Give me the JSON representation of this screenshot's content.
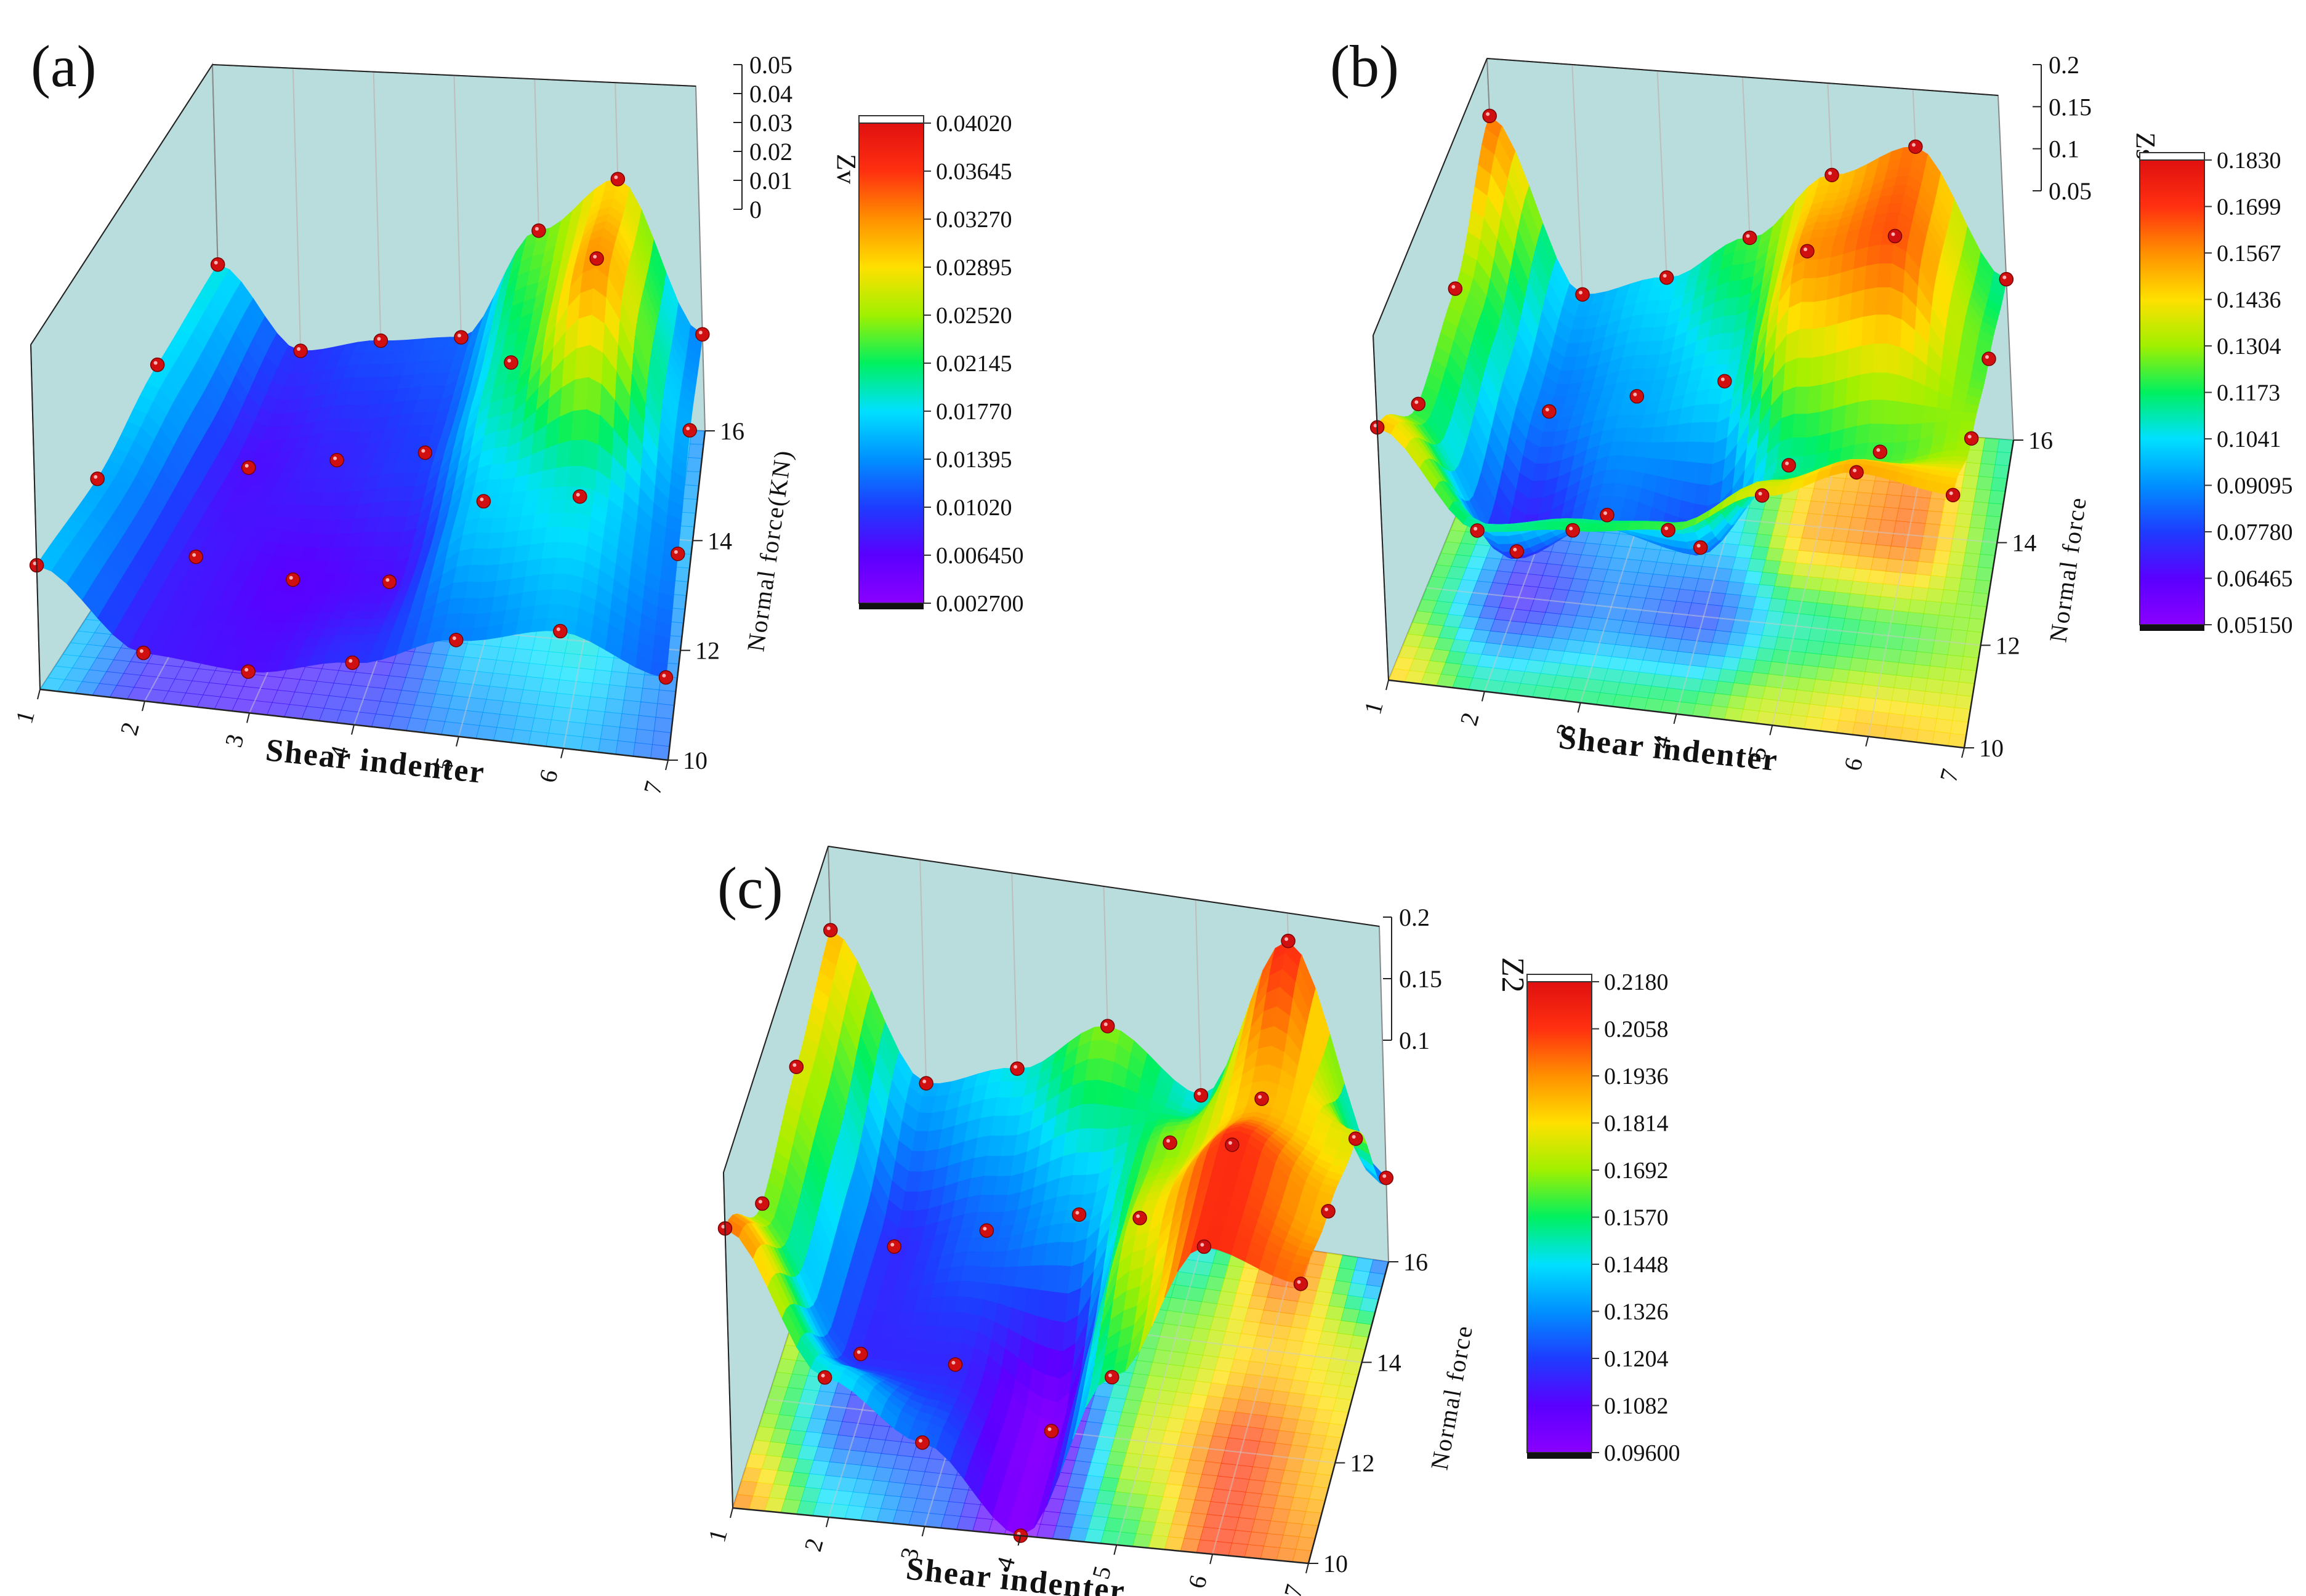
{
  "colors": {
    "ramp": [
      "#8a00ff",
      "#5a00ff",
      "#1e3cff",
      "#0090ff",
      "#00e0ff",
      "#00f060",
      "#a0f000",
      "#ffe000",
      "#ff9000",
      "#ff3010",
      "#e01010"
    ],
    "floor_ramp": [
      "#7a4ac8",
      "#5e6ad4",
      "#4a98d8",
      "#62c8c8",
      "#9ad070",
      "#d8c850",
      "#d89040",
      "#c86a30"
    ],
    "wall": "#b9dcdc",
    "grid": "#bdbdbd",
    "dot": "#d01010"
  },
  "chart_data": [
    {
      "type": "surface3d",
      "panel_label": "(a)",
      "xlabel": "Shear indenter",
      "ylabel": "Normal force(KN)",
      "zlabel": "Zv",
      "x_ticks": [
        "1",
        "2",
        "3",
        "4",
        "5",
        "6",
        "7"
      ],
      "y_ticks": [
        "10",
        "12",
        "14",
        "16"
      ],
      "z_ticks": [
        "0",
        "0.01",
        "0.02",
        "0.03",
        "0.04",
        "0.05"
      ],
      "colorbar_ticks": [
        "0.04020",
        "0.03645",
        "0.03270",
        "0.02895",
        "0.02520",
        "0.02145",
        "0.01770",
        "0.01395",
        "0.01020",
        "0.006450",
        "0.002700"
      ],
      "zlim": [
        0,
        0.05
      ],
      "points": [
        [
          1,
          10,
          0.018
        ],
        [
          2,
          10,
          0.007
        ],
        [
          3,
          10,
          0.006
        ],
        [
          4,
          10,
          0.009
        ],
        [
          5,
          10,
          0.014
        ],
        [
          6,
          10,
          0.017
        ],
        [
          7,
          10,
          0.012
        ],
        [
          1,
          12,
          0.017
        ],
        [
          2,
          12,
          0.007
        ],
        [
          3,
          12,
          0.005
        ],
        [
          4,
          12,
          0.006
        ],
        [
          5,
          12,
          0.019
        ],
        [
          6,
          12,
          0.021
        ],
        [
          7,
          12,
          0.014
        ],
        [
          1,
          14,
          0.02
        ],
        [
          2,
          14,
          0.006
        ],
        [
          3,
          14,
          0.008
        ],
        [
          4,
          14,
          0.01
        ],
        [
          5,
          14,
          0.024
        ],
        [
          6,
          14,
          0.04
        ],
        [
          7,
          14,
          0.016
        ],
        [
          1,
          16,
          0.021
        ],
        [
          2,
          16,
          0.009
        ],
        [
          3,
          16,
          0.011
        ],
        [
          4,
          16,
          0.012
        ],
        [
          5,
          16,
          0.028
        ],
        [
          6,
          16,
          0.036
        ],
        [
          7,
          16,
          0.014
        ]
      ]
    },
    {
      "type": "surface3d",
      "panel_label": "(b)",
      "xlabel": "Shear indenter",
      "ylabel": "Normal force",
      "zlabel": "Zs",
      "x_ticks": [
        "1",
        "2",
        "3",
        "4",
        "5",
        "6",
        "7"
      ],
      "y_ticks": [
        "10",
        "12",
        "14",
        "16"
      ],
      "z_ticks": [
        "0.05",
        "0.1",
        "0.15",
        "0.2"
      ],
      "colorbar_ticks": [
        "0.1830",
        "0.1699",
        "0.1567",
        "0.1436",
        "0.1304",
        "0.1173",
        "0.1041",
        "0.09095",
        "0.07780",
        "0.06465",
        "0.05150"
      ],
      "zlim": [
        0.05,
        0.2
      ],
      "points": [
        [
          1,
          10,
          0.16
        ],
        [
          2,
          10,
          0.12
        ],
        [
          3,
          10,
          0.125
        ],
        [
          4,
          10,
          0.13
        ],
        [
          5,
          10,
          0.15
        ],
        [
          6,
          10,
          0.165
        ],
        [
          7,
          10,
          0.16
        ],
        [
          1,
          12,
          0.13
        ],
        [
          2,
          12,
          0.07
        ],
        [
          3,
          12,
          0.09
        ],
        [
          4,
          12,
          0.08
        ],
        [
          5,
          12,
          0.12
        ],
        [
          6,
          12,
          0.13
        ],
        [
          7,
          12,
          0.14
        ],
        [
          1,
          14,
          0.14
        ],
        [
          2,
          14,
          0.09
        ],
        [
          3,
          14,
          0.1
        ],
        [
          4,
          14,
          0.11
        ],
        [
          5,
          14,
          0.17
        ],
        [
          6,
          14,
          0.18
        ],
        [
          7,
          14,
          0.13
        ],
        [
          1,
          16,
          0.175
        ],
        [
          2,
          16,
          0.1
        ],
        [
          3,
          16,
          0.11
        ],
        [
          4,
          16,
          0.13
        ],
        [
          5,
          16,
          0.16
        ],
        [
          6,
          16,
          0.175
        ],
        [
          7,
          16,
          0.12
        ]
      ]
    },
    {
      "type": "surface3d",
      "panel_label": "(c)",
      "xlabel": "Shear indenter",
      "ylabel": "Normal force",
      "zlabel": "Z2",
      "x_ticks": [
        "1",
        "2",
        "3",
        "4",
        "5",
        "6",
        "7"
      ],
      "y_ticks": [
        "10",
        "12",
        "14",
        "16"
      ],
      "z_ticks": [
        "0.1",
        "0.15",
        "0.2"
      ],
      "colorbar_ticks": [
        "0.2180",
        "0.2058",
        "0.1936",
        "0.1814",
        "0.1692",
        "0.1570",
        "0.1448",
        "0.1326",
        "0.1204",
        "0.1082",
        "0.09600"
      ],
      "zlim": [
        0.1,
        0.22
      ],
      "points": [
        [
          1,
          10,
          0.2
        ],
        [
          2,
          10,
          0.15
        ],
        [
          3,
          10,
          0.13
        ],
        [
          4,
          10,
          0.1
        ],
        [
          5,
          10,
          0.16
        ],
        [
          6,
          10,
          0.21
        ],
        [
          7,
          10,
          0.2
        ],
        [
          1,
          12,
          0.17
        ],
        [
          2,
          12,
          0.12
        ],
        [
          3,
          12,
          0.12
        ],
        [
          4,
          12,
          0.1
        ],
        [
          5,
          12,
          0.18
        ],
        [
          6,
          12,
          0.21
        ],
        [
          7,
          12,
          0.19
        ],
        [
          1,
          14,
          0.18
        ],
        [
          2,
          14,
          0.12
        ],
        [
          3,
          14,
          0.13
        ],
        [
          4,
          14,
          0.14
        ],
        [
          5,
          14,
          0.17
        ],
        [
          6,
          14,
          0.19
        ],
        [
          7,
          14,
          0.18
        ],
        [
          1,
          16,
          0.19
        ],
        [
          2,
          16,
          0.14
        ],
        [
          3,
          16,
          0.15
        ],
        [
          4,
          16,
          0.17
        ],
        [
          5,
          16,
          0.15
        ],
        [
          6,
          16,
          0.21
        ],
        [
          7,
          16,
          0.13
        ]
      ]
    }
  ]
}
